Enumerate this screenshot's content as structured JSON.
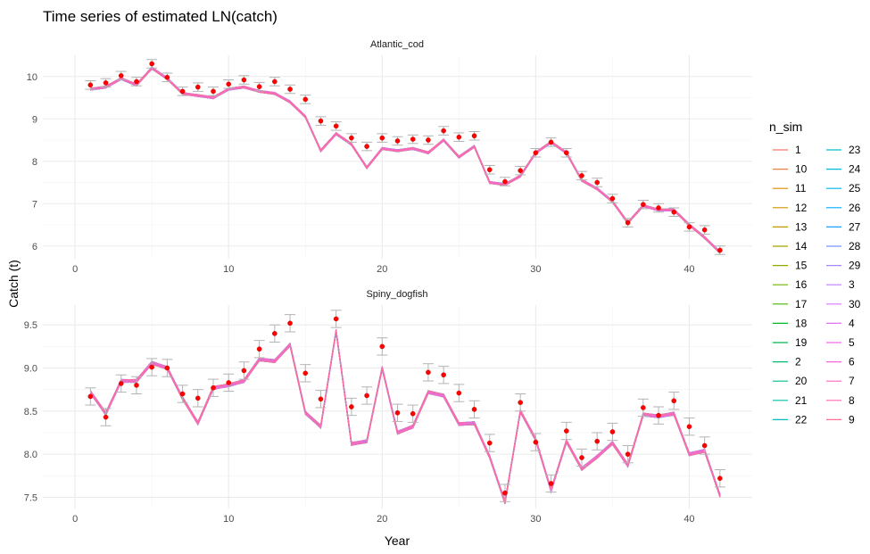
{
  "title": "Time series of estimated LN(catch)",
  "xlabel": "Year",
  "ylabel": "Catch (t)",
  "legend": {
    "title": "n_sim",
    "position": "right",
    "entries": [
      {
        "label": "1",
        "color": "#F8766D"
      },
      {
        "label": "10",
        "color": "#EE8043"
      },
      {
        "label": "11",
        "color": "#E08B00"
      },
      {
        "label": "12",
        "color": "#CF9400"
      },
      {
        "label": "13",
        "color": "#BB9D00"
      },
      {
        "label": "14",
        "color": "#A5A500"
      },
      {
        "label": "15",
        "color": "#8DAB00"
      },
      {
        "label": "16",
        "color": "#6FB000"
      },
      {
        "label": "17",
        "color": "#46B500"
      },
      {
        "label": "18",
        "color": "#00B81F"
      },
      {
        "label": "19",
        "color": "#00BA4E"
      },
      {
        "label": "2",
        "color": "#00BC6D"
      },
      {
        "label": "20",
        "color": "#00BE89"
      },
      {
        "label": "21",
        "color": "#00BFA2"
      },
      {
        "label": "22",
        "color": "#00BFB8"
      },
      {
        "label": "23",
        "color": "#00BDCD"
      },
      {
        "label": "24",
        "color": "#00BADE"
      },
      {
        "label": "25",
        "color": "#00B4EE"
      },
      {
        "label": "26",
        "color": "#00ABFB"
      },
      {
        "label": "27",
        "color": "#1EA0FF"
      },
      {
        "label": "28",
        "color": "#7993FF"
      },
      {
        "label": "29",
        "color": "#A287FF"
      },
      {
        "label": "3",
        "color": "#BE7EFF"
      },
      {
        "label": "30",
        "color": "#D377FF"
      },
      {
        "label": "4",
        "color": "#E271F4"
      },
      {
        "label": "5",
        "color": "#EE6CE6"
      },
      {
        "label": "6",
        "color": "#F769D5"
      },
      {
        "label": "7",
        "color": "#FD68C2"
      },
      {
        "label": "8",
        "color": "#FF6AAD"
      },
      {
        "label": "9",
        "color": "#FF6C96"
      }
    ]
  },
  "colors": {
    "observed_point": "#FF0000",
    "error_bar": "#B3B3B3",
    "grid": "#EBEBEB",
    "text": "#4D4D4D"
  },
  "chart_data": [
    {
      "type": "line",
      "facet": "Atlantic_cod",
      "xlim": [
        1,
        42
      ],
      "ylim": [
        5.7,
        10.5
      ],
      "xticks": [
        0,
        10,
        20,
        30,
        40
      ],
      "yticks": [
        6,
        7,
        8,
        9,
        10
      ],
      "grid": true,
      "x": [
        1,
        2,
        3,
        4,
        5,
        6,
        7,
        8,
        9,
        10,
        11,
        12,
        13,
        14,
        15,
        16,
        17,
        18,
        19,
        20,
        21,
        22,
        23,
        24,
        25,
        26,
        27,
        28,
        29,
        30,
        31,
        32,
        33,
        34,
        35,
        36,
        37,
        38,
        39,
        40,
        41,
        42
      ],
      "estimated": [
        9.7,
        9.75,
        9.95,
        9.8,
        10.2,
        9.95,
        9.6,
        9.55,
        9.5,
        9.7,
        9.75,
        9.65,
        9.6,
        9.4,
        9.05,
        8.25,
        8.65,
        8.4,
        7.85,
        8.3,
        8.25,
        8.3,
        8.2,
        8.5,
        8.1,
        8.35,
        7.5,
        7.45,
        7.65,
        8.2,
        8.45,
        8.2,
        7.55,
        7.35,
        7.05,
        6.55,
        6.95,
        6.85,
        6.85,
        6.5,
        6.2,
        5.85
      ],
      "observed": [
        9.8,
        9.85,
        10.02,
        9.88,
        10.3,
        9.98,
        9.65,
        9.75,
        9.65,
        9.82,
        9.92,
        9.76,
        9.88,
        9.7,
        9.46,
        8.95,
        8.83,
        8.55,
        8.35,
        8.55,
        8.48,
        8.52,
        8.5,
        8.72,
        8.57,
        8.6,
        7.8,
        7.52,
        7.78,
        8.2,
        8.45,
        8.2,
        7.66,
        7.5,
        7.12,
        6.55,
        6.98,
        6.9,
        6.8,
        6.45,
        6.38,
        5.9
      ],
      "errorbar_halfwidth": 0.1
    },
    {
      "type": "line",
      "facet": "Spiny_dogfish",
      "xlim": [
        1,
        42
      ],
      "ylim": [
        7.37,
        9.73
      ],
      "xticks": [
        0,
        10,
        20,
        30,
        40
      ],
      "yticks": [
        7.5,
        8.0,
        8.5,
        9.0,
        9.5
      ],
      "grid": true,
      "x": [
        1,
        2,
        3,
        4,
        5,
        6,
        7,
        8,
        9,
        10,
        11,
        12,
        13,
        14,
        15,
        16,
        17,
        18,
        19,
        20,
        21,
        22,
        23,
        24,
        25,
        26,
        27,
        28,
        29,
        30,
        31,
        32,
        33,
        34,
        35,
        36,
        37,
        38,
        39,
        40,
        41,
        42
      ],
      "estimated": [
        8.72,
        8.47,
        8.85,
        8.85,
        9.06,
        9.0,
        8.65,
        8.36,
        8.77,
        8.8,
        8.85,
        9.1,
        9.08,
        9.27,
        8.48,
        8.32,
        9.43,
        8.12,
        8.15,
        9.0,
        8.25,
        8.32,
        8.72,
        8.68,
        8.35,
        8.36,
        7.97,
        7.44,
        8.5,
        8.17,
        7.58,
        8.15,
        7.83,
        7.97,
        8.13,
        7.87,
        8.46,
        8.44,
        8.47,
        8.0,
        8.04,
        7.52
      ],
      "observed": [
        8.67,
        8.43,
        8.82,
        8.8,
        9.01,
        9.0,
        8.7,
        8.65,
        8.77,
        8.83,
        8.97,
        9.22,
        9.4,
        9.52,
        8.94,
        8.64,
        9.57,
        8.55,
        8.68,
        9.25,
        8.48,
        8.47,
        8.95,
        8.92,
        8.71,
        8.52,
        8.13,
        7.55,
        8.6,
        8.14,
        7.66,
        8.27,
        7.96,
        8.15,
        8.26,
        8.0,
        8.54,
        8.45,
        8.62,
        8.32,
        8.1,
        7.72
      ],
      "errorbar_halfwidth": 0.1
    }
  ]
}
